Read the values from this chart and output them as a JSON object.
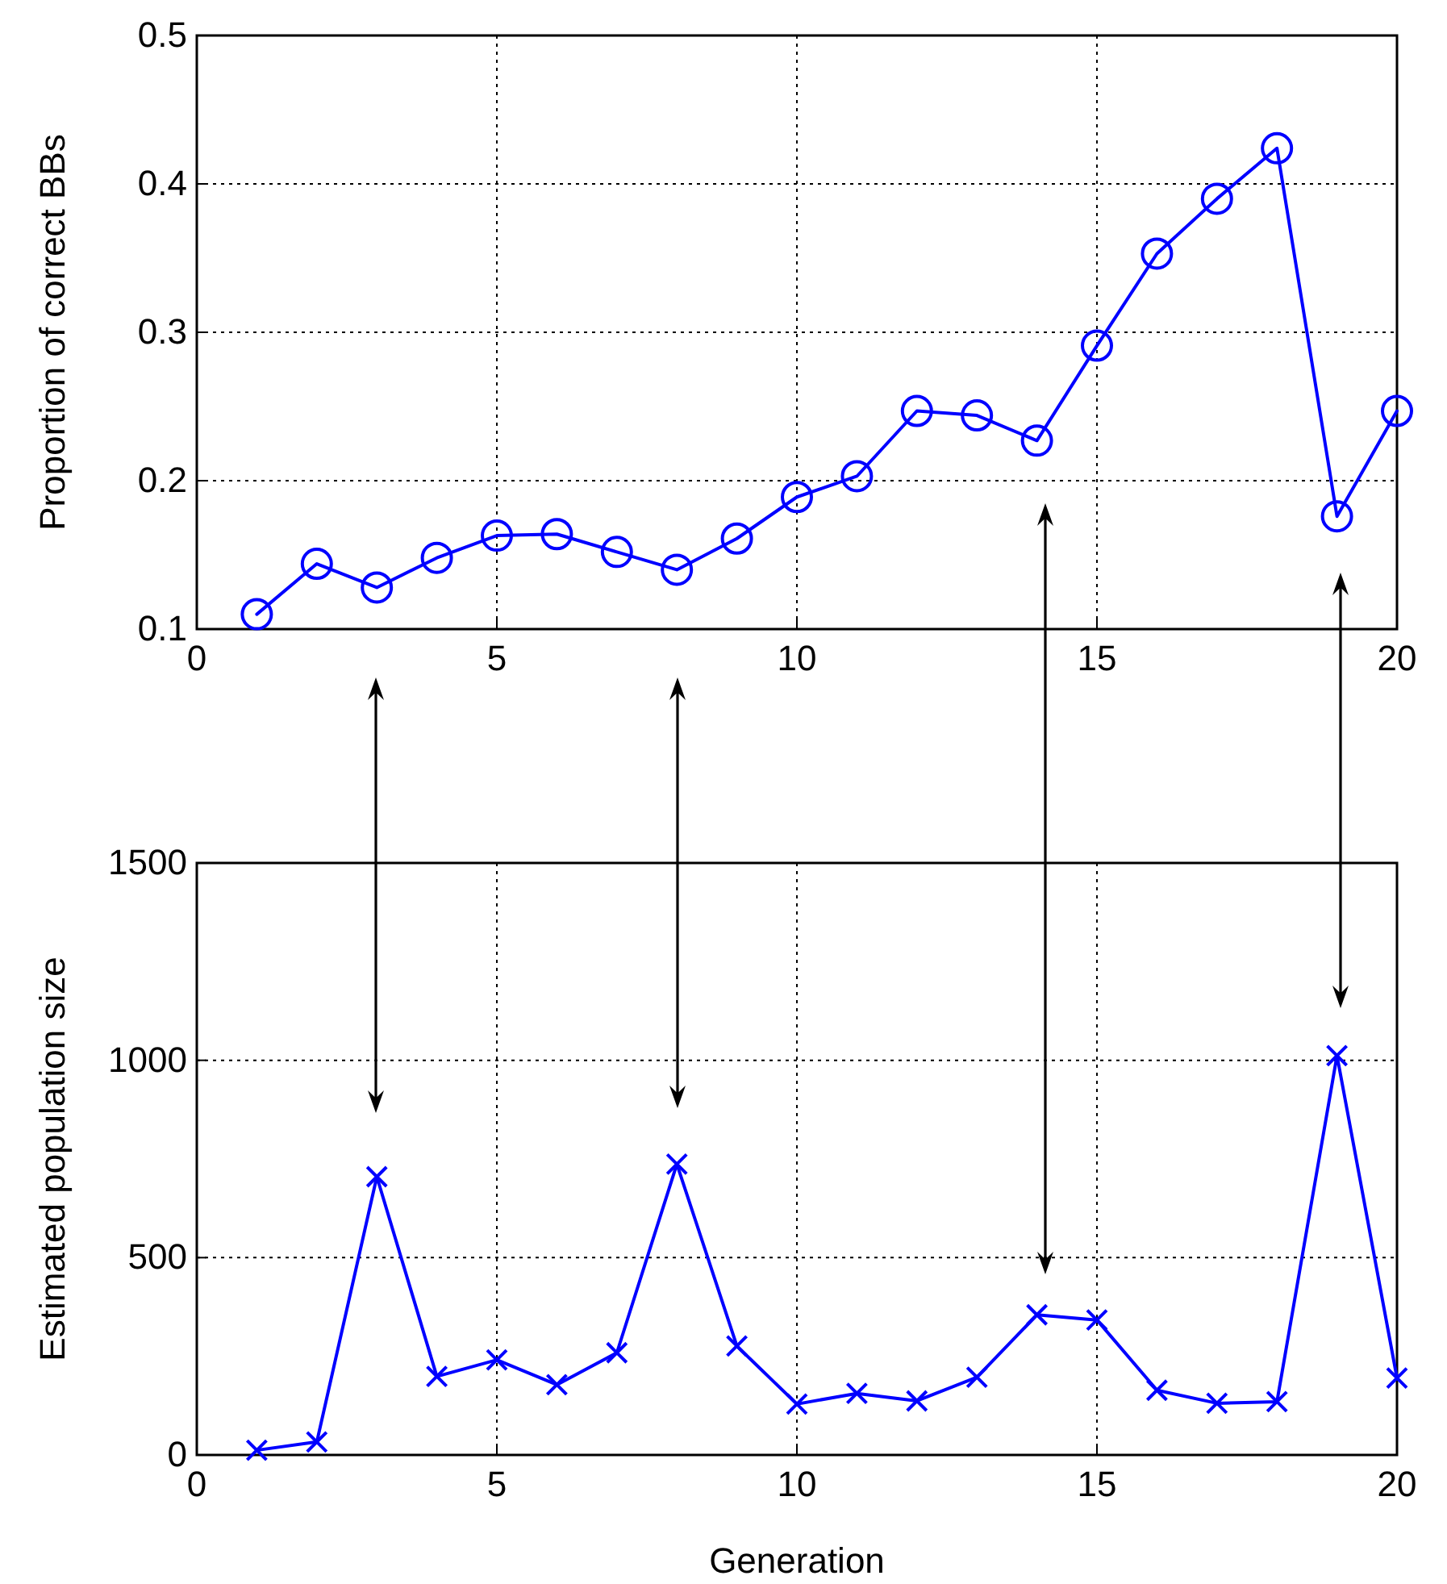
{
  "chart_data": [
    {
      "type": "line",
      "ylabel": "Proportion of correct BBs",
      "x": [
        1,
        2,
        3,
        4,
        5,
        6,
        7,
        8,
        9,
        10,
        11,
        12,
        13,
        14,
        15,
        16,
        17,
        18,
        19,
        20
      ],
      "series": [
        {
          "color": "#0000ff",
          "values": [
            0.11,
            0.144,
            0.128,
            0.148,
            0.163,
            0.164,
            0.152,
            0.14,
            0.161,
            0.189,
            0.203,
            0.247,
            0.244,
            0.227,
            0.291,
            0.353,
            0.39,
            0.424,
            0.176,
            0.247
          ]
        }
      ],
      "xlim": [
        0,
        20
      ],
      "xticks": [
        0,
        5,
        10,
        15,
        20
      ],
      "ylim": [
        0.1,
        0.5
      ],
      "yticks": [
        {
          "value": 0.1,
          "label": "0.1"
        },
        {
          "value": 0.2,
          "label": "0.2"
        },
        {
          "value": 0.3,
          "label": "0.3"
        },
        {
          "value": 0.4,
          "label": "0.4"
        },
        {
          "value": 0.5,
          "label": "0.5"
        }
      ],
      "grid": true,
      "marker": "circle",
      "line_style": "solid"
    },
    {
      "type": "line",
      "ylabel": "Estimated population size",
      "xlabel": "Generation",
      "x": [
        1,
        2,
        3,
        4,
        5,
        6,
        7,
        8,
        9,
        10,
        11,
        12,
        13,
        14,
        15,
        16,
        17,
        18,
        19,
        20
      ],
      "series": [
        {
          "color": "#0000ff",
          "values": [
            12,
            33,
            705,
            199,
            241,
            178,
            259,
            737,
            276,
            129,
            156,
            137,
            197,
            355,
            342,
            164,
            131,
            135,
            1012,
            195
          ]
        }
      ],
      "xlim": [
        0,
        20
      ],
      "xticks": [
        0,
        5,
        10,
        15,
        20
      ],
      "ylim": [
        0,
        1500
      ],
      "yticks": [
        0,
        500,
        1000,
        1500
      ],
      "grid": true,
      "marker": "cross",
      "line_style": "solid"
    }
  ]
}
